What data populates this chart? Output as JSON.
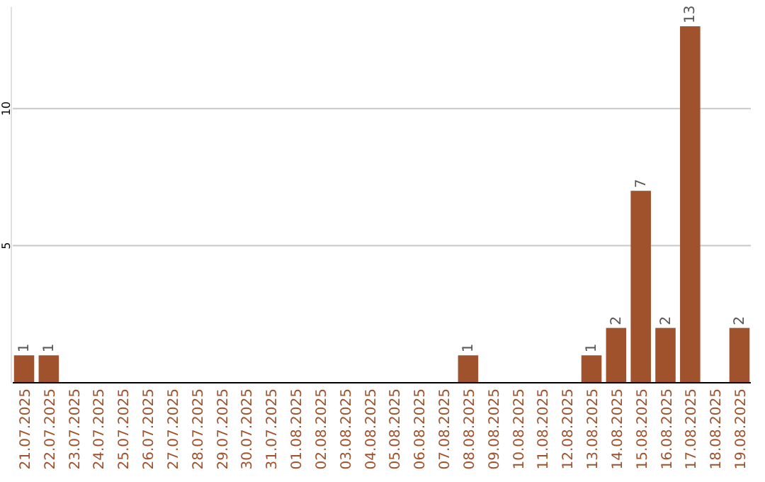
{
  "chart_data": {
    "type": "bar",
    "categories": [
      "21.07.2025",
      "22.07.2025",
      "23.07.2025",
      "24.07.2025",
      "25.07.2025",
      "26.07.2025",
      "27.07.2025",
      "28.07.2025",
      "29.07.2025",
      "30.07.2025",
      "31.07.2025",
      "01.08.2025",
      "02.08.2025",
      "03.08.2025",
      "04.08.2025",
      "05.08.2025",
      "06.08.2025",
      "07.08.2025",
      "08.08.2025",
      "09.08.2025",
      "10.08.2025",
      "11.08.2025",
      "12.08.2025",
      "13.08.2025",
      "14.08.2025",
      "15.08.2025",
      "16.08.2025",
      "17.08.2025",
      "18.08.2025",
      "19.08.2025"
    ],
    "values": [
      1,
      1,
      0,
      0,
      0,
      0,
      0,
      0,
      0,
      0,
      0,
      0,
      0,
      0,
      0,
      0,
      0,
      0,
      1,
      0,
      0,
      0,
      0,
      1,
      2,
      7,
      2,
      13,
      0,
      2
    ],
    "value_labels": [
      "1",
      "1",
      null,
      null,
      null,
      null,
      null,
      null,
      null,
      null,
      null,
      null,
      null,
      null,
      null,
      null,
      null,
      null,
      "1",
      null,
      null,
      null,
      null,
      "1",
      "2",
      "7",
      "2",
      "13",
      null,
      "2"
    ],
    "color": "#a0522d",
    "ylim": [
      0,
      13.7
    ],
    "yticks": [
      5,
      10
    ],
    "grid": "y"
  }
}
